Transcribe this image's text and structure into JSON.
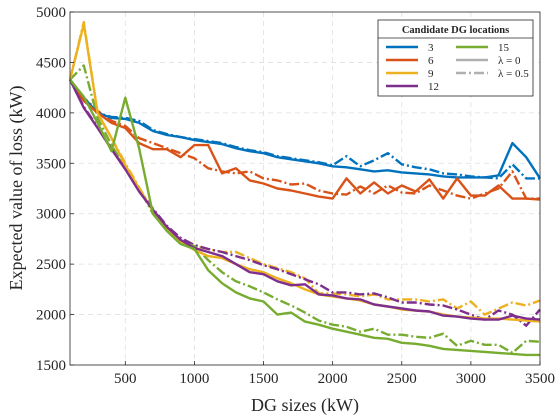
{
  "chart_data": {
    "type": "line",
    "title": "",
    "xlabel": "DG sizes (kW)",
    "ylabel": "Expected value of loss (kW)",
    "xlim": [
      100,
      3500
    ],
    "ylim": [
      1500,
      5000
    ],
    "xticks": [
      500,
      1000,
      1500,
      2000,
      2500,
      3000,
      3500
    ],
    "yticks": [
      1500,
      2000,
      2500,
      3000,
      3500,
      4000,
      4500,
      5000
    ],
    "grid": true,
    "x": [
      100,
      200,
      300,
      400,
      500,
      600,
      700,
      800,
      900,
      1000,
      1100,
      1200,
      1300,
      1400,
      1500,
      1600,
      1700,
      1800,
      1900,
      2000,
      2100,
      2200,
      2300,
      2400,
      2500,
      2600,
      2700,
      2800,
      2900,
      3000,
      3100,
      3200,
      3300,
      3400,
      3500
    ],
    "legend": {
      "title": "Candidate DG locations",
      "placement": "top-right",
      "style_entries": [
        {
          "label": "λ = 0",
          "linestyle": "solid"
        },
        {
          "label": "λ = 0.5",
          "linestyle": "dashdot"
        }
      ]
    },
    "series": [
      {
        "name": "3",
        "color": "#0072BD",
        "lambda": "λ = 0",
        "values": [
          4330,
          4150,
          4000,
          3950,
          3940,
          3900,
          3820,
          3780,
          3760,
          3730,
          3710,
          3690,
          3650,
          3620,
          3600,
          3560,
          3540,
          3520,
          3500,
          3470,
          3460,
          3440,
          3420,
          3430,
          3410,
          3400,
          3390,
          3370,
          3360,
          3360,
          3360,
          3380,
          3700,
          3560,
          3350
        ]
      },
      {
        "name": "3",
        "color": "#0072BD",
        "lambda": "λ = 0.5",
        "values": [
          4330,
          4150,
          4000,
          3960,
          3950,
          3920,
          3830,
          3790,
          3760,
          3740,
          3720,
          3700,
          3660,
          3630,
          3610,
          3570,
          3550,
          3530,
          3510,
          3480,
          3570,
          3470,
          3530,
          3600,
          3490,
          3460,
          3440,
          3400,
          3390,
          3370,
          3360,
          3350,
          3490,
          3350,
          3350
        ]
      },
      {
        "name": "6",
        "color": "#D95319",
        "lambda": "λ = 0",
        "values": [
          4330,
          4120,
          4000,
          3900,
          3850,
          3700,
          3640,
          3640,
          3560,
          3680,
          3680,
          3400,
          3450,
          3330,
          3300,
          3250,
          3230,
          3200,
          3170,
          3150,
          3350,
          3200,
          3310,
          3200,
          3280,
          3220,
          3340,
          3150,
          3350,
          3180,
          3180,
          3280,
          3150,
          3150,
          3140
        ]
      },
      {
        "name": "6",
        "color": "#D95319",
        "lambda": "λ = 0.5",
        "values": [
          4330,
          4150,
          4020,
          3920,
          3870,
          3750,
          3700,
          3650,
          3600,
          3550,
          3450,
          3420,
          3400,
          3420,
          3350,
          3330,
          3290,
          3300,
          3230,
          3200,
          3190,
          3270,
          3200,
          3280,
          3210,
          3200,
          3280,
          3230,
          3180,
          3150,
          3200,
          3250,
          3420,
          3150,
          3150
        ]
      },
      {
        "name": "9",
        "color": "#EDB120",
        "lambda": "λ = 0",
        "values": [
          4330,
          4880,
          4000,
          3750,
          3480,
          3250,
          3030,
          2850,
          2720,
          2640,
          2580,
          2560,
          2500,
          2450,
          2420,
          2360,
          2310,
          2250,
          2200,
          2180,
          2160,
          2140,
          2100,
          2080,
          2050,
          2040,
          2030,
          2000,
          1980,
          1970,
          1960,
          1960,
          1950,
          1940,
          1930
        ]
      },
      {
        "name": "9",
        "color": "#EDB120",
        "lambda": "λ = 0.5",
        "values": [
          4330,
          4900,
          4000,
          3750,
          3500,
          3260,
          3030,
          2850,
          2750,
          2680,
          2650,
          2620,
          2620,
          2560,
          2500,
          2460,
          2420,
          2360,
          2210,
          2210,
          2200,
          2180,
          2200,
          2150,
          2150,
          2150,
          2130,
          2150,
          2060,
          2130,
          2000,
          2060,
          2120,
          2090,
          2140
        ]
      },
      {
        "name": "12",
        "color": "#7E2F8E",
        "lambda": "λ = 0",
        "values": [
          4330,
          4050,
          3850,
          3640,
          3440,
          3220,
          3040,
          2870,
          2740,
          2660,
          2620,
          2580,
          2500,
          2420,
          2400,
          2330,
          2290,
          2300,
          2200,
          2190,
          2160,
          2150,
          2100,
          2080,
          2060,
          2040,
          2030,
          1990,
          1980,
          1960,
          1950,
          1950,
          1990,
          1960,
          1950
        ]
      },
      {
        "name": "12",
        "color": "#7E2F8E",
        "lambda": "λ = 0.5",
        "values": [
          4330,
          4060,
          3860,
          3640,
          3450,
          3240,
          3050,
          2880,
          2760,
          2690,
          2650,
          2620,
          2580,
          2540,
          2490,
          2450,
          2400,
          2350,
          2300,
          2220,
          2220,
          2200,
          2210,
          2170,
          2120,
          2120,
          2100,
          2090,
          2050,
          2000,
          1950,
          2040,
          2000,
          1890,
          2050
        ]
      },
      {
        "name": "15",
        "color": "#77AC30",
        "lambda": "λ = 0",
        "values": [
          4330,
          4160,
          3900,
          3620,
          4150,
          3650,
          3000,
          2830,
          2700,
          2650,
          2440,
          2310,
          2220,
          2160,
          2130,
          2000,
          2020,
          1930,
          1900,
          1860,
          1830,
          1800,
          1770,
          1760,
          1720,
          1710,
          1690,
          1660,
          1650,
          1640,
          1630,
          1620,
          1610,
          1600,
          1600
        ]
      },
      {
        "name": "15",
        "color": "#77AC30",
        "lambda": "λ = 0.5",
        "values": [
          4330,
          4470,
          3950,
          3680,
          3450,
          3250,
          3000,
          2850,
          2720,
          2680,
          2540,
          2420,
          2330,
          2280,
          2220,
          2150,
          2090,
          2020,
          1940,
          1900,
          1880,
          1830,
          1860,
          1800,
          1800,
          1780,
          1770,
          1810,
          1690,
          1740,
          1700,
          1700,
          1620,
          1740,
          1730
        ]
      }
    ]
  }
}
